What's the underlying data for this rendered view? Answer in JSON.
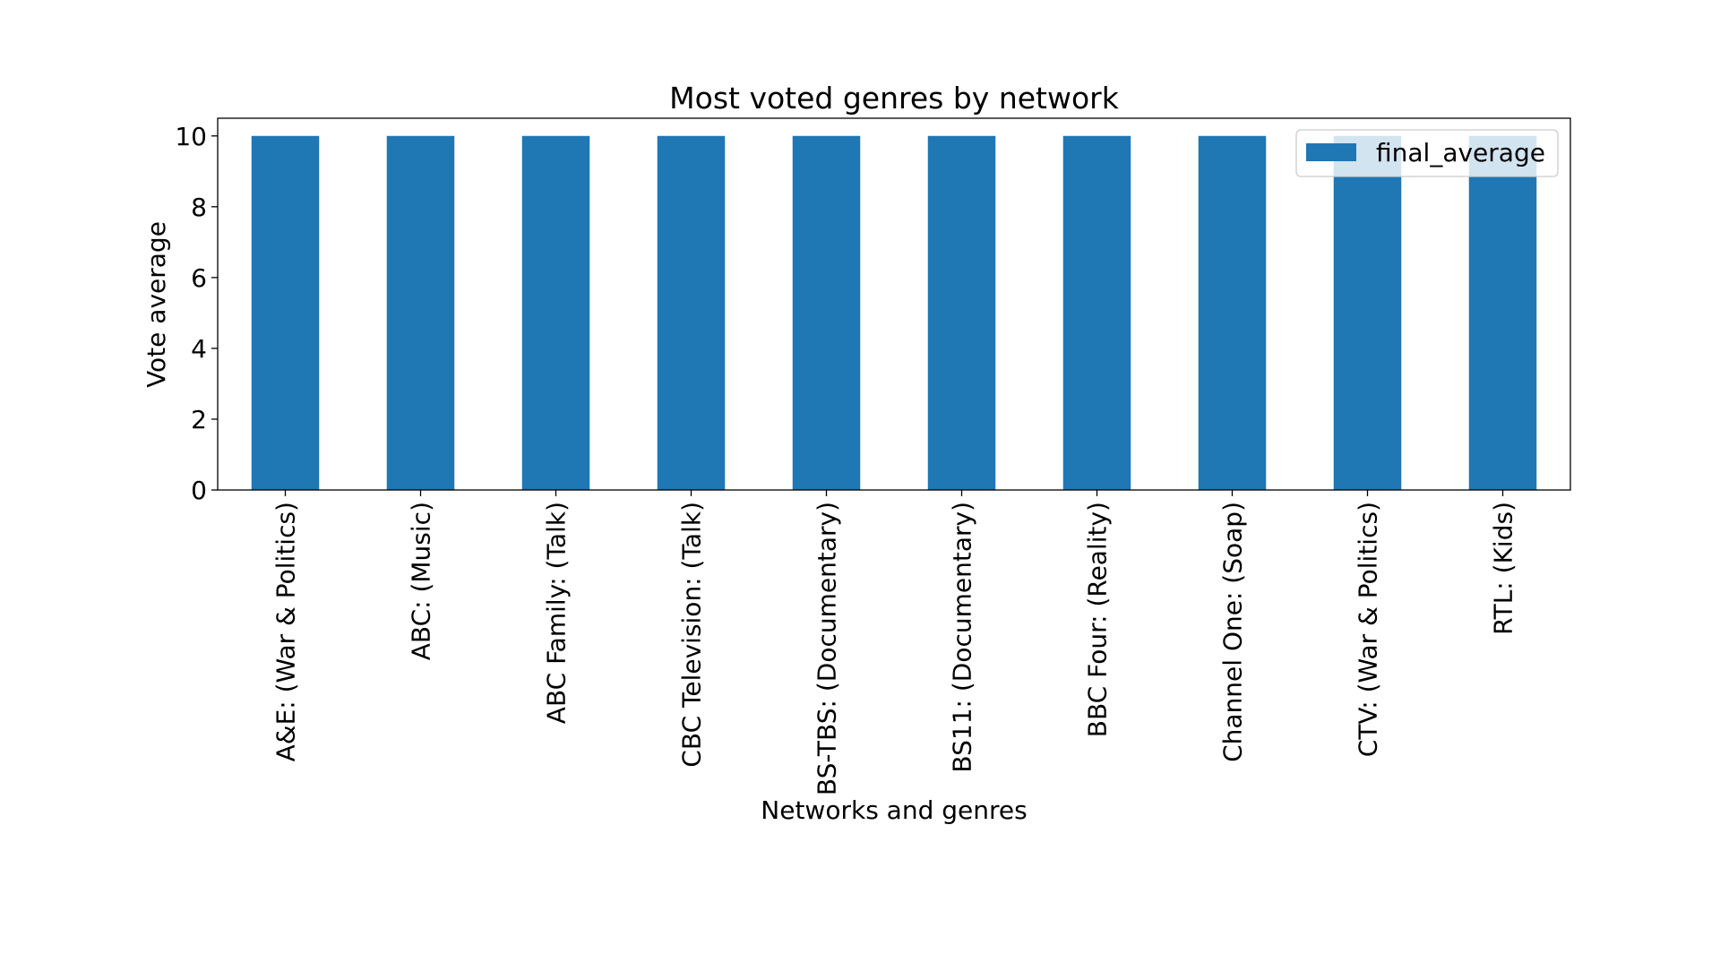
{
  "chart_data": {
    "type": "bar",
    "title": "Most voted genres by network",
    "xlabel": "Networks and genres",
    "ylabel": "Vote average",
    "ylim": [
      0,
      10.5
    ],
    "yticks": [
      0,
      2,
      4,
      6,
      8,
      10
    ],
    "grid": false,
    "legend_position": "top-right",
    "categories": [
      "A&E: (War & Politics)",
      "ABC: (Music)",
      "ABC Family: (Talk)",
      "CBC Television: (Talk)",
      "BS-TBS: (Documentary)",
      "BS11: (Documentary)",
      "BBC Four: (Reality)",
      "Channel One: (Soap)",
      "CTV: (War & Politics)",
      "RTL: (Kids)"
    ],
    "series": [
      {
        "name": "final_average",
        "color": "#1f77b4",
        "values": [
          10,
          10,
          10,
          10,
          10,
          10,
          10,
          10,
          10,
          10
        ]
      }
    ]
  }
}
